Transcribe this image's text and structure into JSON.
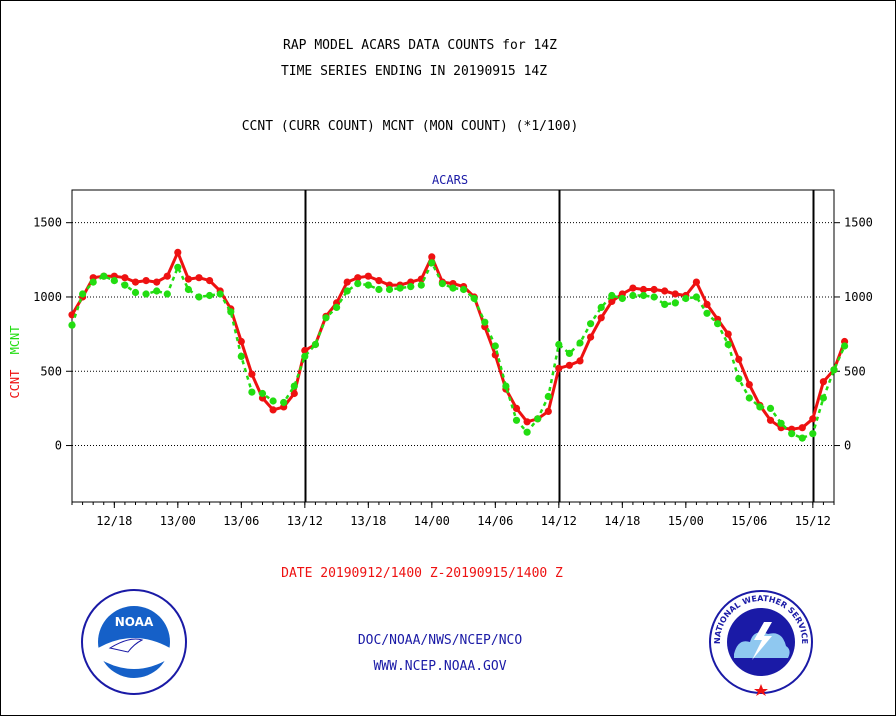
{
  "header": {
    "line1": "RAP MODEL ACARS DATA COUNTS for 14Z",
    "line2": "TIME SERIES ENDING IN 20190915 14Z",
    "line3": "CCNT (CURR COUNT) MCNT (MON COUNT) (*1/100)"
  },
  "footer": {
    "date_range": "DATE 20190912/1400 Z-20190915/1400 Z",
    "org": "DOC/NOAA/NWS/NCEP/NCO",
    "url": "WWW.NCEP.NOAA.GOV"
  },
  "logos": {
    "left": "NOAA",
    "right": "NATIONAL WEATHER SERVICE"
  },
  "colors": {
    "ccnt": "#ee1111",
    "mcnt": "#22dd11",
    "accent_blue": "#1a1aa6",
    "grid": "#000000"
  },
  "chart_data": {
    "type": "line",
    "title": "ACARS",
    "ylabel_parts": [
      "CCNT",
      "MCNT"
    ],
    "ylim": [
      -380,
      1720
    ],
    "yticks": [
      0,
      500,
      1000,
      1500
    ],
    "xlim_hours": [
      0,
      72
    ],
    "x_tick_labels": [
      "12/18",
      "13/00",
      "13/06",
      "13/12",
      "13/18",
      "14/00",
      "14/06",
      "14/12",
      "14/18",
      "15/00",
      "15/06",
      "15/12"
    ],
    "day_boundaries_labels": [
      "13/12",
      "14/12",
      "15/12"
    ],
    "grid": true,
    "series": [
      {
        "name": "CCNT",
        "color": "#ee1111",
        "values": [
          880,
          1000,
          1130,
          1140,
          1140,
          1130,
          1100,
          1110,
          1100,
          1140,
          1300,
          1120,
          1130,
          1110,
          1040,
          920,
          700,
          480,
          320,
          240,
          260,
          350,
          640,
          680,
          870,
          960,
          1100,
          1130,
          1140,
          1110,
          1080,
          1080,
          1100,
          1120,
          1270,
          1100,
          1090,
          1070,
          1000,
          800,
          610,
          380,
          250,
          160,
          180,
          230,
          520,
          540,
          570,
          730,
          860,
          970,
          1020,
          1060,
          1050,
          1050,
          1040,
          1020,
          1010,
          1100,
          950,
          850,
          750,
          580,
          410,
          270,
          170,
          120,
          110,
          120,
          180,
          430,
          510,
          700
        ]
      },
      {
        "name": "MCNT",
        "color": "#22dd11",
        "values": [
          810,
          1020,
          1100,
          1140,
          1110,
          1080,
          1030,
          1020,
          1040,
          1020,
          1200,
          1050,
          1000,
          1010,
          1020,
          900,
          600,
          360,
          350,
          300,
          290,
          400,
          600,
          680,
          860,
          930,
          1040,
          1090,
          1080,
          1050,
          1050,
          1060,
          1070,
          1080,
          1230,
          1090,
          1060,
          1050,
          990,
          830,
          670,
          400,
          170,
          90,
          180,
          330,
          680,
          620,
          690,
          820,
          930,
          1010,
          990,
          1010,
          1010,
          1000,
          950,
          960,
          990,
          1000,
          890,
          820,
          680,
          450,
          320,
          260,
          250,
          150,
          80,
          50,
          80,
          320,
          510,
          670
        ]
      }
    ]
  }
}
